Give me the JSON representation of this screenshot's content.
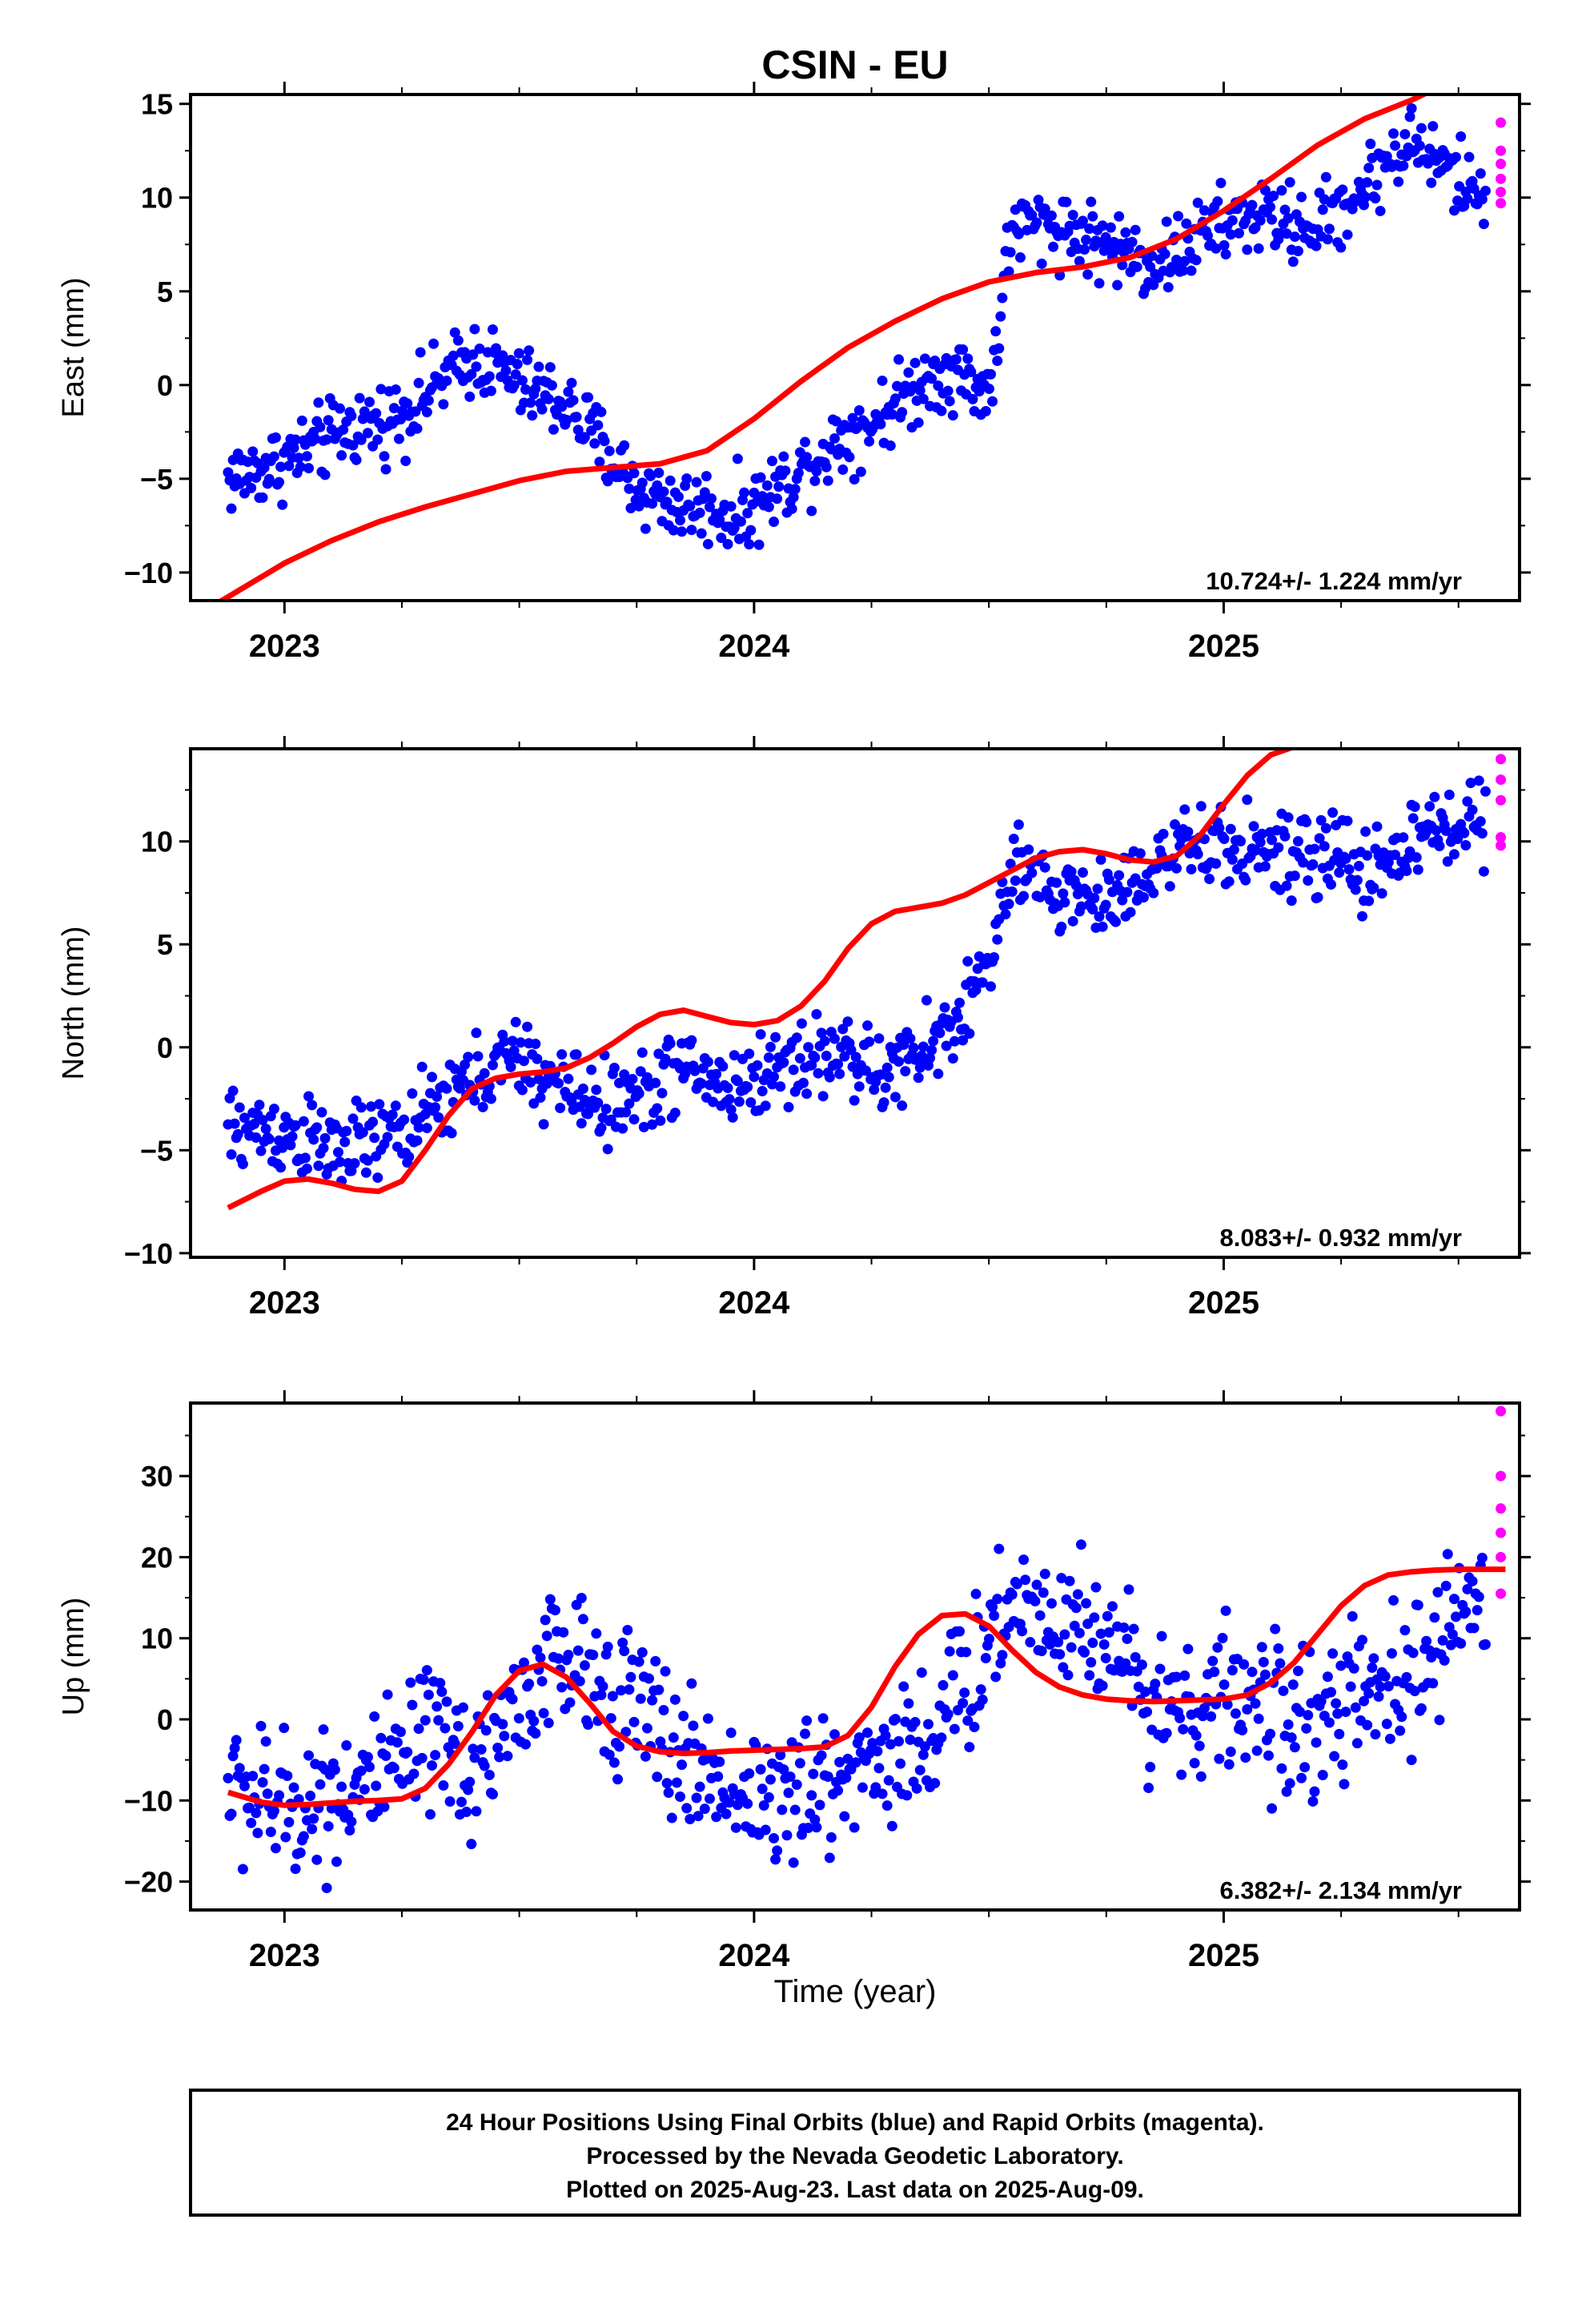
{
  "chart_data": {
    "title": "CSIN - EU",
    "xlabel": "Time (year)",
    "xlim": [
      2022.8,
      2025.63
    ],
    "x_ticks": [
      "2023",
      "2024",
      "2025"
    ],
    "colors": {
      "final_orbits": "#0000ff",
      "rapid_orbits": "#ff00ff",
      "fit": "#ff0000"
    },
    "panels": [
      {
        "type": "scatter",
        "ylabel": "East (mm)",
        "ylim": [
          -11.5,
          15.5
        ],
        "y_ticks": [
          "15",
          "10",
          "5",
          "0",
          "-5",
          "-10"
        ],
        "rate": "10.724+/- 1.224 mm/yr",
        "series": [
          {
            "values_x": [
              2022.88,
              2022.95,
              2023.0,
              2023.05,
              2023.1,
              2023.15,
              2023.2,
              2023.25,
              2023.3,
              2023.35,
              2023.4,
              2023.45,
              2023.5,
              2023.55,
              2023.6,
              2023.65,
              2023.7,
              2023.75,
              2023.8,
              2023.85,
              2023.9,
              2023.95,
              2024.0,
              2024.05,
              2024.1,
              2024.15,
              2024.2,
              2024.25,
              2024.3,
              2024.35,
              2024.4,
              2024.45,
              2024.5,
              2024.55,
              2024.6,
              2024.65,
              2024.7,
              2024.75,
              2024.8,
              2024.85,
              2024.9,
              2024.95,
              2025.0,
              2025.05,
              2025.1,
              2025.15,
              2025.2,
              2025.25,
              2025.3,
              2025.35,
              2025.4,
              2025.45,
              2025.5,
              2025.55
            ],
            "values_y": [
              -5.0,
              -4.5,
              -4.0,
              -3.5,
              -2.8,
              -2.2,
              -2.0,
              -1.5,
              -0.5,
              0.5,
              1.5,
              1.0,
              0.0,
              -0.5,
              -1.0,
              -2.5,
              -4.0,
              -5.5,
              -6.0,
              -6.5,
              -6.5,
              -7.0,
              -6.5,
              -5.5,
              -4.5,
              -3.5,
              -2.5,
              -2.0,
              -1.0,
              0.0,
              0.8,
              0.5,
              -0.5,
              8.5,
              8.5,
              8.5,
              8.0,
              7.5,
              7.0,
              6.5,
              7.0,
              8.0,
              8.5,
              9.0,
              9.0,
              8.5,
              8.5,
              9.5,
              10.5,
              12.0,
              13.0,
              12.0,
              11.0,
              10.0
            ]
          }
        ],
        "fit_x": [
          2022.8,
          2022.9,
          2023.0,
          2023.1,
          2023.2,
          2023.3,
          2023.4,
          2023.5,
          2023.6,
          2023.7,
          2023.8,
          2023.9,
          2024.0,
          2024.1,
          2024.2,
          2024.3,
          2024.4,
          2024.5,
          2024.6,
          2024.7,
          2024.8,
          2024.9,
          2025.0,
          2025.1,
          2025.2,
          2025.3,
          2025.4,
          2025.45
        ],
        "fit_y": [
          -12.5,
          -11.0,
          -9.5,
          -8.3,
          -7.3,
          -6.5,
          -5.8,
          -5.1,
          -4.6,
          -4.4,
          -4.2,
          -3.5,
          -1.8,
          0.2,
          2.0,
          3.4,
          4.6,
          5.5,
          6.0,
          6.3,
          6.8,
          7.8,
          9.3,
          11.0,
          12.8,
          14.2,
          15.2,
          15.8
        ],
        "rapid_y": [
          14.0,
          12.5,
          11.8,
          11.0,
          10.3,
          9.7
        ]
      },
      {
        "type": "scatter",
        "ylabel": "North (mm)",
        "ylim": [
          -10.2,
          14.5
        ],
        "y_ticks": [
          "10",
          "5",
          "0",
          "-5",
          "-10"
        ],
        "rate": "8.083+/- 0.932 mm/yr",
        "series": [
          {
            "values_x": [
              2022.88,
              2022.95,
              2023.0,
              2023.05,
              2023.1,
              2023.15,
              2023.2,
              2023.25,
              2023.3,
              2023.35,
              2023.4,
              2023.45,
              2023.5,
              2023.55,
              2023.6,
              2023.65,
              2023.7,
              2023.75,
              2023.8,
              2023.85,
              2023.9,
              2023.95,
              2024.0,
              2024.05,
              2024.1,
              2024.15,
              2024.2,
              2024.25,
              2024.3,
              2024.35,
              2024.4,
              2024.45,
              2024.5,
              2024.55,
              2024.6,
              2024.65,
              2024.7,
              2024.75,
              2024.8,
              2024.85,
              2024.9,
              2024.95,
              2025.0,
              2025.05,
              2025.1,
              2025.15,
              2025.2,
              2025.25,
              2025.3,
              2025.35,
              2025.4,
              2025.45,
              2025.5,
              2025.55
            ],
            "values_y": [
              -4.0,
              -4.0,
              -4.2,
              -4.5,
              -5.0,
              -4.8,
              -4.5,
              -4.0,
              -3.5,
              -2.5,
              -1.5,
              -1.0,
              -0.5,
              -1.5,
              -2.0,
              -2.5,
              -2.8,
              -2.5,
              -1.5,
              -1.0,
              -1.5,
              -2.0,
              -1.5,
              -1.0,
              -0.5,
              -0.5,
              0.0,
              -1.5,
              -1.0,
              -0.5,
              0.5,
              2.0,
              4.0,
              8.5,
              8.0,
              7.5,
              7.5,
              7.0,
              8.0,
              9.0,
              9.5,
              9.5,
              9.5,
              10.0,
              9.5,
              9.0,
              9.0,
              9.5,
              8.5,
              9.0,
              10.0,
              10.5,
              11.0,
              11.0
            ]
          }
        ],
        "fit_x": [
          2022.88,
          2022.95,
          2023.0,
          2023.05,
          2023.1,
          2023.15,
          2023.2,
          2023.25,
          2023.3,
          2023.35,
          2023.4,
          2023.45,
          2023.5,
          2023.55,
          2023.6,
          2023.65,
          2023.7,
          2023.75,
          2023.8,
          2023.85,
          2023.9,
          2023.95,
          2024.0,
          2024.05,
          2024.1,
          2024.15,
          2024.2,
          2024.25,
          2024.3,
          2024.35,
          2024.4,
          2024.45,
          2024.5,
          2024.55,
          2024.6,
          2024.65,
          2024.7,
          2024.75,
          2024.8,
          2024.85,
          2024.9,
          2024.95,
          2025.0,
          2025.05,
          2025.1,
          2025.15,
          2025.2,
          2025.25,
          2025.3,
          2025.35,
          2025.4,
          2025.45,
          2025.5,
          2025.55,
          2025.6
        ],
        "fit_y": [
          -7.8,
          -7.0,
          -6.5,
          -6.4,
          -6.6,
          -6.9,
          -7.0,
          -6.5,
          -5.0,
          -3.3,
          -2.0,
          -1.5,
          -1.3,
          -1.2,
          -1.0,
          -0.5,
          0.2,
          1.0,
          1.6,
          1.8,
          1.5,
          1.2,
          1.1,
          1.3,
          2.0,
          3.2,
          4.8,
          6.0,
          6.6,
          6.8,
          7.0,
          7.4,
          8.0,
          8.6,
          9.2,
          9.5,
          9.6,
          9.4,
          9.1,
          9.0,
          9.3,
          10.3,
          11.8,
          13.2,
          14.2,
          14.6,
          14.7,
          14.7,
          14.7,
          14.7,
          14.7,
          14.7,
          14.7,
          14.7,
          14.7
        ],
        "rapid_y": [
          14.0,
          13.0,
          12.0,
          10.2,
          9.8
        ]
      },
      {
        "type": "scatter",
        "ylabel": "Up (mm)",
        "ylim": [
          -23.5,
          39
        ],
        "y_ticks": [
          "30",
          "20",
          "10",
          "0",
          "-10",
          "-20"
        ],
        "rate": "6.382+/- 2.134 mm/yr",
        "series": [
          {
            "values_x": [
              2022.88,
              2022.95,
              2023.0,
              2023.05,
              2023.1,
              2023.15,
              2023.2,
              2023.25,
              2023.3,
              2023.35,
              2023.4,
              2023.45,
              2023.5,
              2023.55,
              2023.6,
              2023.65,
              2023.7,
              2023.75,
              2023.8,
              2023.85,
              2023.9,
              2023.95,
              2024.0,
              2024.05,
              2024.1,
              2024.15,
              2024.2,
              2024.25,
              2024.3,
              2024.35,
              2024.4,
              2024.45,
              2024.5,
              2024.55,
              2024.6,
              2024.65,
              2024.7,
              2024.75,
              2024.8,
              2024.85,
              2024.9,
              2024.95,
              2025.0,
              2025.05,
              2025.1,
              2025.15,
              2025.2,
              2025.25,
              2025.3,
              2025.35,
              2025.4,
              2025.45,
              2025.5,
              2025.55
            ],
            "values_y": [
              -8,
              -10,
              -11,
              -10,
              -9,
              -8,
              -8,
              -6,
              -3,
              -4,
              -6,
              -2,
              2,
              6,
              7,
              5,
              4,
              2,
              -2,
              -5,
              -7,
              -8,
              -9,
              -10,
              -10,
              -8,
              -6,
              -5,
              -4,
              -3,
              0,
              4,
              10,
              15,
              14,
              13,
              12,
              10,
              6,
              3,
              2,
              1,
              3,
              2,
              1,
              0,
              -1,
              2,
              2,
              3,
              5,
              8,
              12,
              16
            ]
          }
        ],
        "fit_x": [
          2022.88,
          2022.95,
          2023.0,
          2023.05,
          2023.1,
          2023.15,
          2023.2,
          2023.25,
          2023.3,
          2023.35,
          2023.4,
          2023.45,
          2023.5,
          2023.55,
          2023.6,
          2023.65,
          2023.7,
          2023.75,
          2023.8,
          2023.85,
          2023.9,
          2023.95,
          2024.0,
          2024.05,
          2024.1,
          2024.15,
          2024.2,
          2024.25,
          2024.3,
          2024.35,
          2024.4,
          2024.45,
          2024.5,
          2024.55,
          2024.6,
          2024.65,
          2024.7,
          2024.75,
          2024.8,
          2024.85,
          2024.9,
          2024.95,
          2025.0,
          2025.05,
          2025.1,
          2025.15,
          2025.2,
          2025.25,
          2025.3,
          2025.35,
          2025.4,
          2025.45,
          2025.5,
          2025.55,
          2025.6
        ],
        "fit_y": [
          -9,
          -10.2,
          -10.6,
          -10.5,
          -10.3,
          -10.1,
          -10.0,
          -9.8,
          -8.5,
          -5.5,
          -1.5,
          3.0,
          6.0,
          6.8,
          5.2,
          2.0,
          -1.5,
          -3.3,
          -4.0,
          -4.2,
          -4.1,
          -3.9,
          -3.8,
          -3.7,
          -3.6,
          -3.4,
          -2.0,
          1.5,
          6.5,
          10.5,
          12.8,
          13.0,
          11.5,
          8.5,
          5.8,
          4.0,
          3.0,
          2.5,
          2.3,
          2.2,
          2.3,
          2.4,
          2.5,
          3.0,
          4.5,
          7.0,
          10.5,
          14.0,
          16.5,
          17.8,
          18.2,
          18.4,
          18.5,
          18.5,
          18.5
        ],
        "rapid_y": [
          38,
          30,
          26,
          23,
          20,
          15.5
        ]
      }
    ],
    "footer": [
      "24 Hour Positions Using Final Orbits (blue) and Rapid Orbits (magenta).",
      "Processed by the Nevada Geodetic Laboratory.",
      "Plotted on 2025-Aug-23. Last data on 2025-Aug-09."
    ]
  }
}
